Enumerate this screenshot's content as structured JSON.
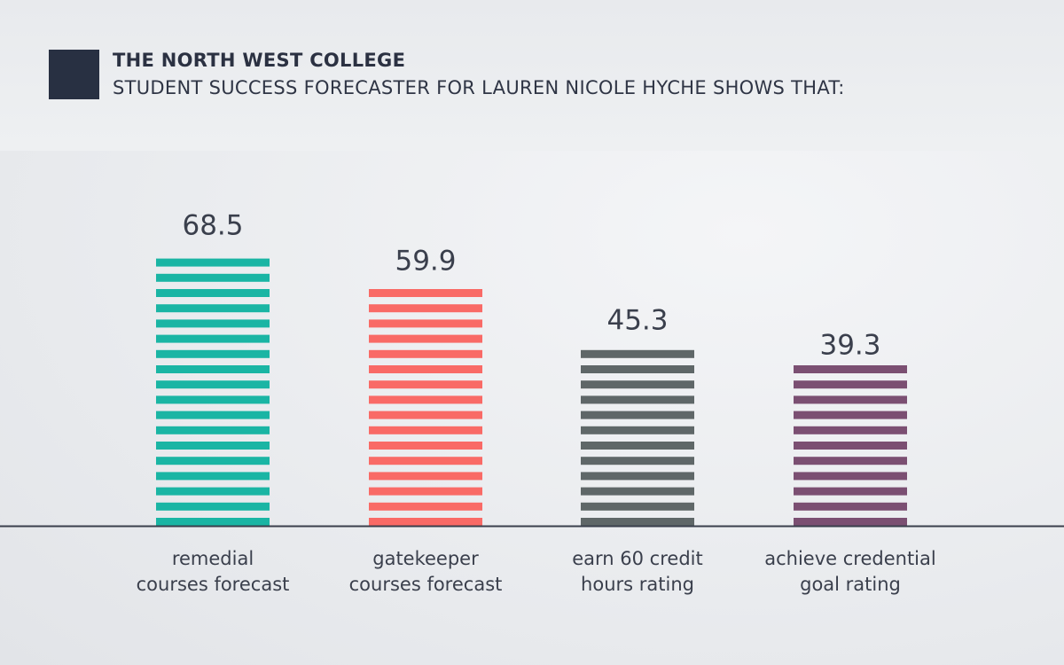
{
  "header": {
    "title": "THE NORTH WEST COLLEGE",
    "subtitle": "STUDENT SUCCESS FORECASTER FOR LAUREN NICOLE HYCHE SHOWS THAT:"
  },
  "chart_data": {
    "type": "bar",
    "title": "THE NORTH WEST COLLEGE",
    "subtitle": "STUDENT SUCCESS FORECASTER FOR LAUREN NICOLE HYCHE SHOWS THAT:",
    "categories": [
      [
        "remedial",
        "courses forecast"
      ],
      [
        "gatekeeper",
        "courses forecast"
      ],
      [
        "earn 60 credit",
        "hours rating"
      ],
      [
        "achieve credential",
        "goal rating"
      ]
    ],
    "values": [
      68.5,
      59.9,
      45.3,
      39.3
    ],
    "value_labels": [
      "68.5",
      "59.9",
      "45.3",
      "39.3"
    ],
    "colors": [
      "#1ab5a4",
      "#f96a66",
      "#5f6768",
      "#7b4f72"
    ],
    "ylim": [
      0,
      70
    ],
    "grid": false,
    "xlabel": "",
    "ylabel": ""
  }
}
